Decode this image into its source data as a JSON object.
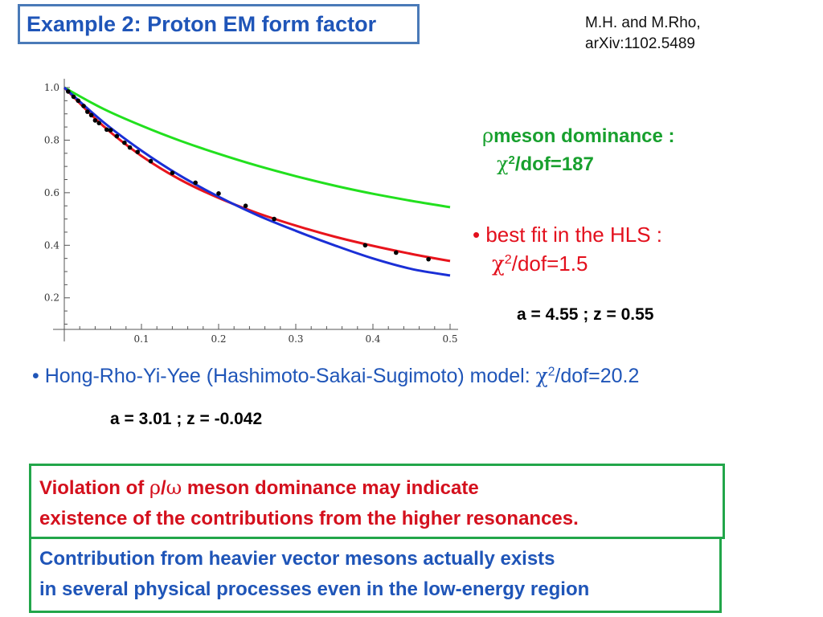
{
  "title": "Example 2: Proton EM form factor",
  "citation": {
    "line1": "M.H. and M.Rho,",
    "line2": "arXiv:1102.5489"
  },
  "rho_label": {
    "symbol": "ρ",
    "text": "meson dominance :",
    "chi": "χ",
    "sup": "2",
    "dof": "/dof=187"
  },
  "hls_label": {
    "bullet": "•",
    "text": "best fit in the HLS :",
    "chi": "χ",
    "sup": "2",
    "dof": "/dof=1.5"
  },
  "params_hls": "a = 4.55 ; z = 0.55",
  "hryy": {
    "bullet": "•",
    "text": "Hong-Rho-Yi-Yee (Hashimoto-Sakai-Sugimoto) model: ",
    "chi": "χ",
    "sup": "2",
    "dof": "/dof=20.2"
  },
  "params_hryy": "a = 3.01 ; z = -0.042",
  "violation": {
    "part1": "Violation of ",
    "rho": "ρ",
    "slash": "/",
    "omega": "ω",
    "part2": " meson dominance may indicate",
    "line2": "existence of the contributions from the higher resonances."
  },
  "contribution": {
    "line1": "Contribution from heavier vector mesons actually exists",
    "line2": "in several physical processes even in the low-energy region"
  },
  "colors": {
    "rho_curve": "#22e01e",
    "hls_curve": "#e8141c",
    "hryy_curve": "#1a2fd6",
    "points": "#000000",
    "title": "#1f55b8"
  },
  "chart_data": {
    "type": "line",
    "title": "",
    "xlabel": "",
    "ylabel": "",
    "xlim": [
      0,
      0.5
    ],
    "ylim": [
      0.08,
      1.0
    ],
    "xticks": [
      0.1,
      0.2,
      0.3,
      0.4,
      0.5
    ],
    "yticks": [
      0.2,
      0.4,
      0.6,
      0.8,
      1.0
    ],
    "xtick_labels": [
      "0.1",
      "0.2",
      "0.3",
      "0.4",
      "0.5"
    ],
    "ytick_labels": [
      "0.2",
      "0.4",
      "0.6",
      "0.8",
      "1.0"
    ],
    "grid": false,
    "series": [
      {
        "color": "#22e01e",
        "x": [
          0,
          0.05,
          0.1,
          0.15,
          0.2,
          0.25,
          0.3,
          0.35,
          0.4,
          0.45,
          0.5
        ],
        "y": [
          1.0,
          0.92,
          0.855,
          0.798,
          0.748,
          0.703,
          0.663,
          0.627,
          0.596,
          0.569,
          0.545
        ]
      },
      {
        "color": "#e8141c",
        "x": [
          0,
          0.05,
          0.1,
          0.15,
          0.2,
          0.25,
          0.3,
          0.35,
          0.4,
          0.45,
          0.5
        ],
        "y": [
          1.0,
          0.855,
          0.74,
          0.65,
          0.58,
          0.523,
          0.475,
          0.433,
          0.398,
          0.367,
          0.34
        ]
      },
      {
        "color": "#1a2fd6",
        "x": [
          0,
          0.05,
          0.1,
          0.15,
          0.2,
          0.25,
          0.3,
          0.35,
          0.4,
          0.45,
          0.5
        ],
        "y": [
          1.0,
          0.87,
          0.76,
          0.665,
          0.585,
          0.515,
          0.455,
          0.4,
          0.35,
          0.31,
          0.285
        ]
      },
      {
        "color": "#000000",
        "marker": "dot",
        "x": [
          0.005,
          0.012,
          0.018,
          0.025,
          0.03,
          0.035,
          0.04,
          0.045,
          0.055,
          0.06,
          0.068,
          0.078,
          0.085,
          0.095,
          0.112,
          0.14,
          0.17,
          0.2,
          0.235,
          0.272,
          0.39,
          0.43,
          0.472
        ],
        "y": [
          0.985,
          0.965,
          0.95,
          0.93,
          0.908,
          0.895,
          0.875,
          0.865,
          0.84,
          0.838,
          0.815,
          0.79,
          0.772,
          0.755,
          0.72,
          0.675,
          0.638,
          0.597,
          0.55,
          0.5,
          0.4,
          0.372,
          0.347
        ]
      }
    ]
  }
}
